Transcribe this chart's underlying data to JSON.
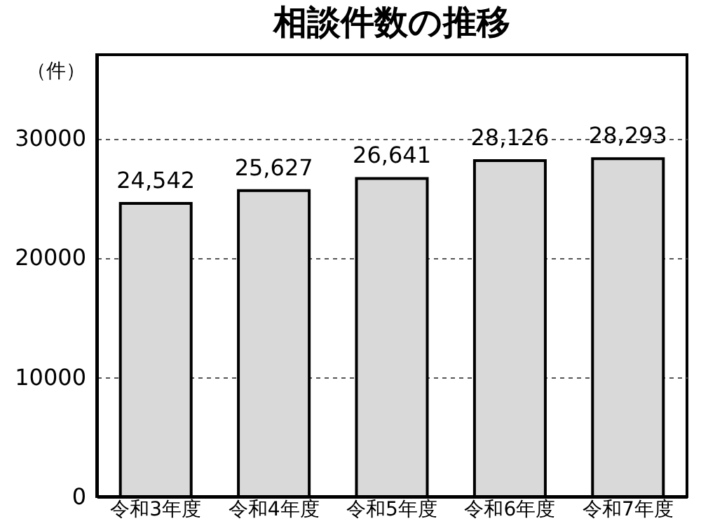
{
  "chart_data": {
    "type": "bar",
    "title": "相談件数の推移",
    "ylabel": "（件）",
    "categories": [
      "令和3年度",
      "令和4年度",
      "令和5年度",
      "令和6年度",
      "令和7年度"
    ],
    "values": [
      24542,
      25627,
      26641,
      28126,
      28293
    ],
    "color": "#d9d9d9",
    "value_labels": [
      "24,542",
      "25,627",
      "26,641",
      "28,126",
      "28,293"
    ],
    "ylim": [
      0,
      37000
    ],
    "yticks": [
      0,
      10000,
      20000,
      30000
    ],
    "grid": "y"
  }
}
